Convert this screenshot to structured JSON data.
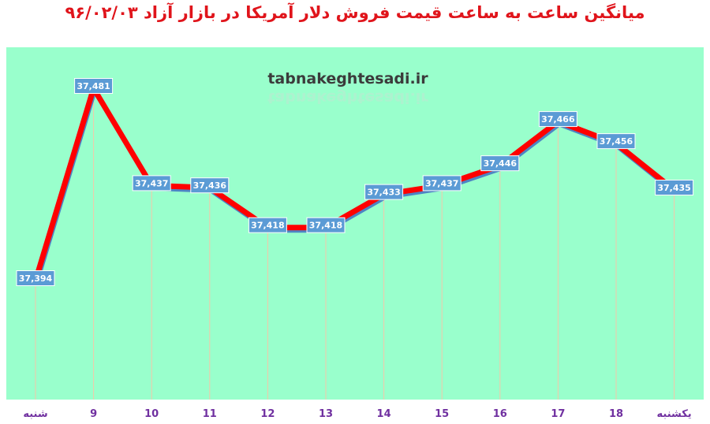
{
  "title": "میانگین ساعت به ساعت قیمت فروش دلار آمریکا در بازار آزاد ۹۶/۰۲/۰۳",
  "watermark": "tabnakeghtesadi.ir",
  "colors": {
    "plot_background": "#99ffcc",
    "line": "#ff0000",
    "line_shadow": "#4e84c4",
    "label_box": "#5b9bd5",
    "label_text": "#ffffff",
    "title": "#e0141b",
    "tick_label": "#7030a0",
    "gridline": "#f4c7a9"
  },
  "chart_data": {
    "type": "line",
    "categories": [
      "شنبه",
      "9",
      "10",
      "11",
      "12",
      "13",
      "14",
      "15",
      "16",
      "17",
      "18",
      "یکشنبه"
    ],
    "series": [
      {
        "values": [
          37394,
          37481,
          37437,
          37436,
          37418,
          37418,
          37433,
          37437,
          37446,
          37466,
          37456,
          37435
        ],
        "labels": [
          "37,394",
          "37,481",
          "37,437",
          "37,436",
          "37,418",
          "37,418",
          "37,433",
          "37,437",
          "37,446",
          "37,466",
          "37,456",
          "37,435"
        ]
      }
    ],
    "ylim": [
      37350,
      37500
    ],
    "grid": "vertical",
    "legend": "none",
    "data_labels": true
  }
}
